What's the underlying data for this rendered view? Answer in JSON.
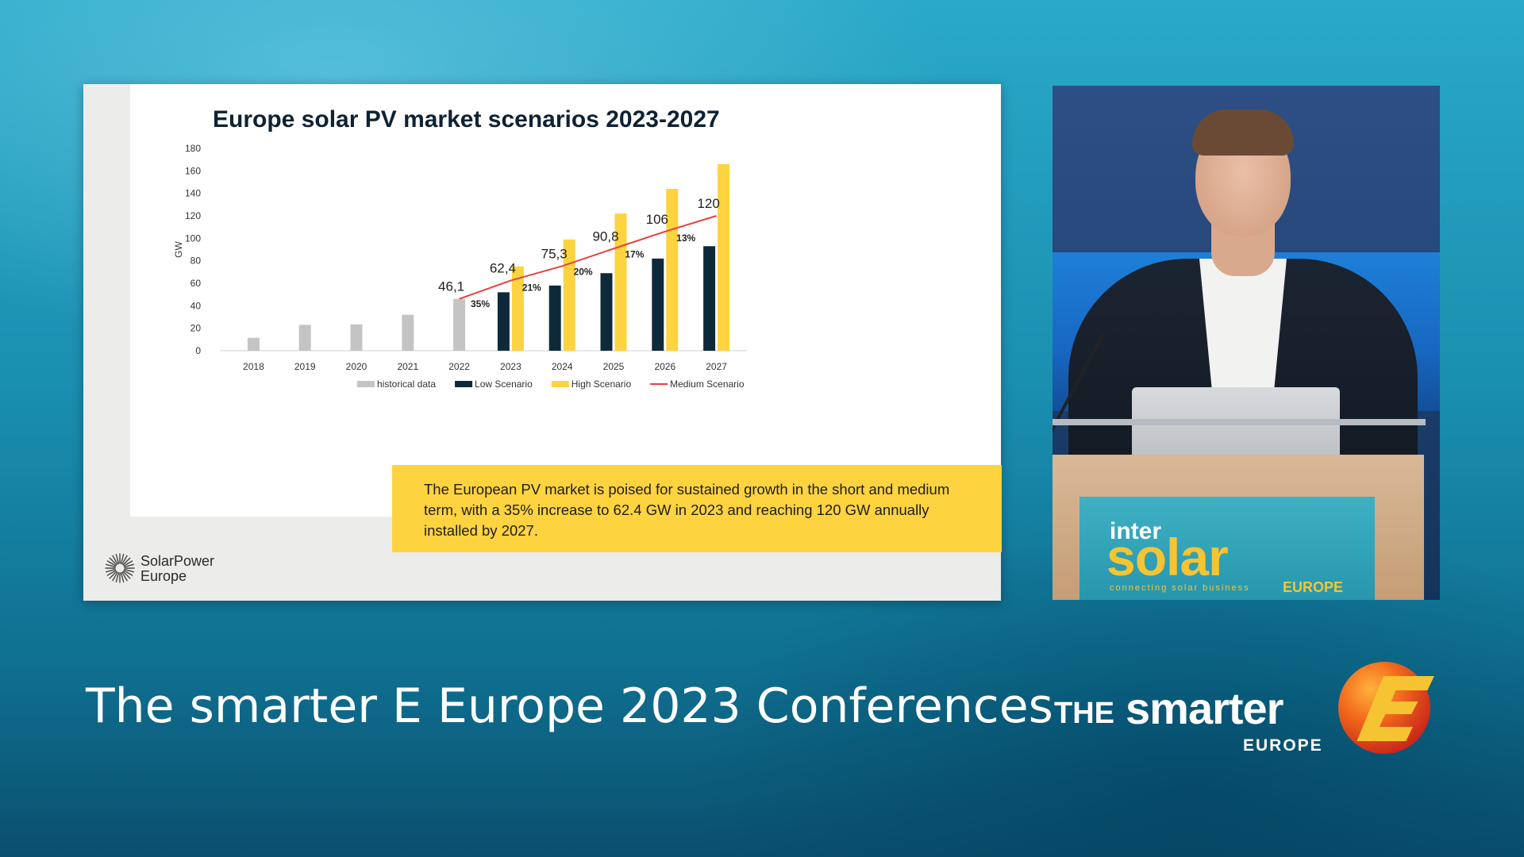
{
  "slide": {
    "title": "Europe solar PV market scenarios 2023-2027",
    "callout": "The European PV market is poised for sustained growth in the short and medium term, with a 35% increase to 62.4 GW in 2023 and reaching 120 GW annually installed by 2027.",
    "logo": {
      "icon": "sun-rays-icon",
      "line1": "SolarPower",
      "line2": "Europe"
    }
  },
  "chart_data": {
    "type": "bar",
    "categories": [
      "2018",
      "2019",
      "2020",
      "2021",
      "2022",
      "2023",
      "2024",
      "2025",
      "2026",
      "2027"
    ],
    "ylabel": "GW",
    "ylim": [
      0,
      180
    ],
    "yticks": [
      0,
      20,
      40,
      60,
      80,
      100,
      120,
      140,
      160,
      180
    ],
    "grid": false,
    "legend_position": "bottom",
    "series": [
      {
        "name": "historical data",
        "kind": "bar",
        "color": "#c4c4c4",
        "values": [
          11.5,
          23,
          23.5,
          32,
          46.1,
          null,
          null,
          null,
          null,
          null
        ]
      },
      {
        "name": "Low Scenario",
        "kind": "bar",
        "color": "#0e2a3a",
        "values": [
          null,
          null,
          null,
          null,
          null,
          52,
          58,
          69,
          82,
          93
        ]
      },
      {
        "name": "High Scenario",
        "kind": "bar",
        "color": "#fdd33f",
        "values": [
          null,
          null,
          null,
          null,
          null,
          75,
          99,
          122,
          144,
          166
        ]
      },
      {
        "name": "Medium Scenario",
        "kind": "line",
        "color": "#e8413c",
        "values": [
          null,
          null,
          null,
          null,
          46.1,
          62.4,
          75.3,
          90.8,
          106,
          120
        ]
      }
    ],
    "value_labels": [
      {
        "category": "2022",
        "value": 46.1,
        "text": "46,1"
      },
      {
        "category": "2023",
        "value": 62.4,
        "text": "62,4"
      },
      {
        "category": "2024",
        "value": 75.3,
        "text": "75,3"
      },
      {
        "category": "2025",
        "value": 90.8,
        "text": "90,8"
      },
      {
        "category": "2026",
        "value": 106,
        "text": "106"
      },
      {
        "category": "2027",
        "value": 120,
        "text": "120"
      }
    ],
    "growth_labels": [
      {
        "between": [
          "2022",
          "2023"
        ],
        "text": "35%"
      },
      {
        "between": [
          "2023",
          "2024"
        ],
        "text": "21%"
      },
      {
        "between": [
          "2024",
          "2025"
        ],
        "text": "20%"
      },
      {
        "between": [
          "2025",
          "2026"
        ],
        "text": "17%"
      },
      {
        "between": [
          "2026",
          "2027"
        ],
        "text": "13%"
      }
    ]
  },
  "podium": {
    "sign_line1": "inter",
    "sign_line2": "solar",
    "sign_tagline": "connecting solar business",
    "sign_region": "EUROPE"
  },
  "footer": {
    "conference_title": "The smarter E Europe 2023 Conferences",
    "brand_the": "THE",
    "brand_smarter": "smarter",
    "brand_europe": "EUROPE",
    "brand_icon": "smarter-e-logo-icon",
    "colors": {
      "accent_orange": "#f26a1b",
      "accent_red": "#d9281f",
      "accent_yellow": "#f6c432"
    }
  }
}
